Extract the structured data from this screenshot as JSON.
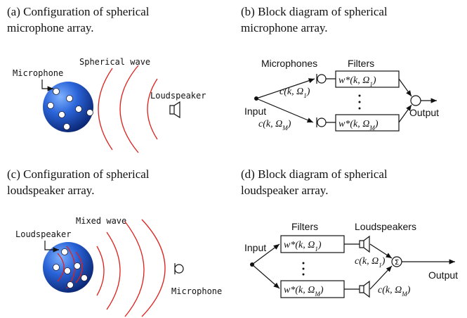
{
  "panel_a": {
    "caption": [
      "(a) Configuration of spherical",
      "microphone array."
    ],
    "wave_label": "Spherical wave",
    "mic_label": "Microphone",
    "speaker_label": "Loudspeaker"
  },
  "panel_b": {
    "caption": [
      "(b) Block diagram of spherical",
      "microphone array."
    ],
    "mics_label": "Microphones",
    "filters_label": "Filters",
    "input_label": "Input",
    "output_label": "Output",
    "filter_1": {
      "main": "w*(k, Ω",
      "sub": "1",
      "end": ")"
    },
    "filter_m": {
      "main": "w*(k, Ω",
      "sub": "M",
      "end": ")"
    },
    "steer_1": {
      "main": "c(k, Ω",
      "sub": "1",
      "end": ")"
    },
    "steer_m": {
      "main": "c(k, Ω",
      "sub": "M",
      "end": ")"
    }
  },
  "panel_c": {
    "caption": [
      "(c) Configuration of spherical",
      "loudspeaker array."
    ],
    "wave_label": "Mixed wave",
    "speaker_label": "Loudspeaker",
    "mic_label": "Microphone"
  },
  "panel_d": {
    "caption": [
      "(d) Block diagram of spherical",
      "loudspeaker array."
    ],
    "filters_label": "Filters",
    "speakers_label": "Loudspeakers",
    "input_label": "Input",
    "output_label": "Output",
    "sum_symbol": "Σ",
    "filter_1": {
      "main": "w*(k, Ω",
      "sub": "1",
      "end": ")"
    },
    "filter_m": {
      "main": "w*(k, Ω",
      "sub": "M",
      "end": ")"
    },
    "steer_1": {
      "main": "c(k, Ω",
      "sub": "1",
      "end": ")"
    },
    "steer_m": {
      "main": "c(k, Ω",
      "sub": "M",
      "end": ")"
    }
  }
}
